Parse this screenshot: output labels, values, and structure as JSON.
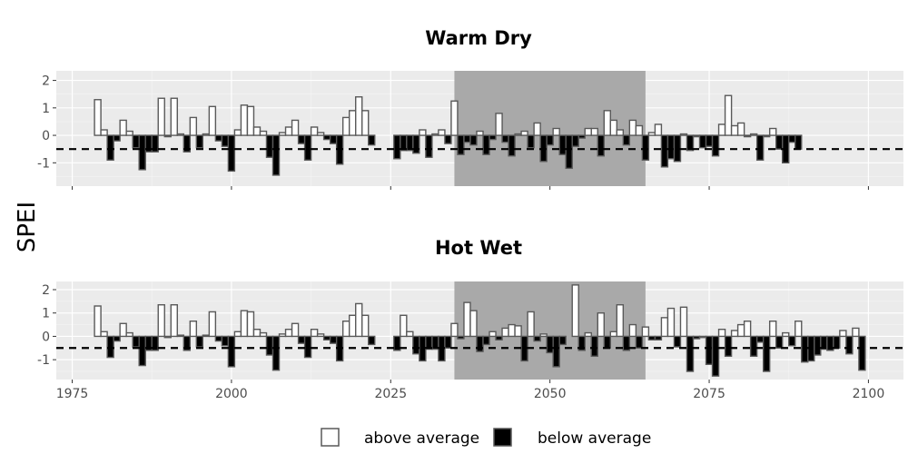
{
  "chart_data": {
    "type": "bar",
    "ylabel": "SPEI",
    "x_ticks": [
      1975,
      2000,
      2025,
      2050,
      2075,
      2100
    ],
    "y_ticks": [
      -1,
      0,
      1,
      2
    ],
    "threshold": -0.5,
    "legend": {
      "above_label": "above average",
      "below_label": "below average",
      "placement": "bottom"
    },
    "colors": {
      "panel_bg": "#ebebeb",
      "shade": "#a9a9a9",
      "above_fill": "#ffffff",
      "below_fill": "#000000",
      "bar_border": "#595959"
    },
    "panels": [
      {
        "title": "Warm Dry",
        "xlim": [
          1972.5,
          2105.5
        ],
        "ylim": [
          -1.85,
          2.35
        ],
        "shaded_range": [
          2035,
          2065
        ],
        "x_start": 1979,
        "spei": [
          1.3,
          0.2,
          -0.9,
          -0.2,
          0.55,
          0.15,
          -0.45,
          -1.25,
          -0.6,
          -0.6,
          1.35,
          -0.05,
          1.35,
          0.05,
          -0.6,
          0.65,
          -0.45,
          0.05,
          1.05,
          -0.2,
          -0.4,
          -1.3,
          0.2,
          1.1,
          1.05,
          0.3,
          0.15,
          -0.8,
          -1.45,
          0.1,
          0.3,
          0.55,
          -0.3,
          -0.9,
          0.3,
          0.1,
          -0.15,
          -0.3,
          -1.05,
          0.65,
          0.9,
          1.4,
          0.9,
          -0.35,
          0,
          0,
          0,
          -0.85,
          -0.55,
          -0.55,
          -0.65,
          0.2,
          -0.8,
          0.05,
          0.2,
          -0.3,
          1.25,
          -0.7,
          -0.25,
          -0.35,
          0.15,
          -0.7,
          -0.15,
          0.8,
          -0.25,
          -0.75,
          0.05,
          0.15,
          -0.45,
          0.45,
          -0.95,
          -0.35,
          0.25,
          -0.7,
          -1.2,
          -0.4,
          -0.1,
          0.25,
          0.25,
          -0.75,
          0.9,
          0.55,
          0.2,
          -0.35,
          0.55,
          0.35,
          -0.9,
          0.1,
          0.4,
          -1.15,
          -0.85,
          -0.95,
          0.05,
          -0.55,
          -0.05,
          -0.45,
          -0.4,
          -0.75,
          0.4,
          1.45,
          0.35,
          0.45,
          -0.05,
          0.05,
          -0.9,
          -0.05,
          0.25,
          -0.5,
          -1.0,
          -0.25,
          -0.5
        ]
      },
      {
        "title": "Hot Wet",
        "xlim": [
          1972.5,
          2105.5
        ],
        "ylim": [
          -1.85,
          2.35
        ],
        "shaded_range": [
          2035,
          2065
        ],
        "x_start": 1979,
        "spei": [
          1.3,
          0.2,
          -0.9,
          -0.2,
          0.55,
          0.15,
          -0.45,
          -1.25,
          -0.6,
          -0.6,
          1.35,
          -0.05,
          1.35,
          0.05,
          -0.6,
          0.65,
          -0.45,
          0.05,
          1.05,
          -0.2,
          -0.4,
          -1.3,
          0.2,
          1.1,
          1.05,
          0.3,
          0.15,
          -0.8,
          -1.45,
          0.1,
          0.3,
          0.55,
          -0.3,
          -0.9,
          0.3,
          0.1,
          -0.15,
          -0.3,
          -1.05,
          0.65,
          0.9,
          1.4,
          0.9,
          -0.35,
          0,
          0,
          0,
          -0.6,
          0.9,
          0.2,
          -0.75,
          -1.05,
          -0.55,
          -0.55,
          -1.05,
          -0.5,
          0.55,
          -0.1,
          1.45,
          1.1,
          -0.65,
          -0.35,
          0.2,
          -0.15,
          0.35,
          0.5,
          0.45,
          -1.05,
          1.05,
          -0.2,
          0.1,
          -0.7,
          -1.3,
          -0.35,
          0,
          2.2,
          -0.6,
          0.15,
          -0.85,
          1.0,
          -0.5,
          0.2,
          1.35,
          -0.6,
          0.5,
          -0.5,
          0.4,
          -0.15,
          -0.15,
          0.8,
          1.2,
          -0.45,
          1.25,
          -1.5,
          -0.1,
          -0.05,
          -1.2,
          -1.7,
          0.3,
          -0.85,
          0.25,
          0.5,
          0.65,
          -0.85,
          -0.25,
          -1.5,
          0.65,
          -0.5,
          0.15,
          -0.4,
          0.65,
          -1.1,
          -1.05,
          -0.8,
          -0.55,
          -0.6,
          -0.5,
          0.25,
          -0.75,
          0.35,
          -1.45
        ]
      }
    ]
  }
}
